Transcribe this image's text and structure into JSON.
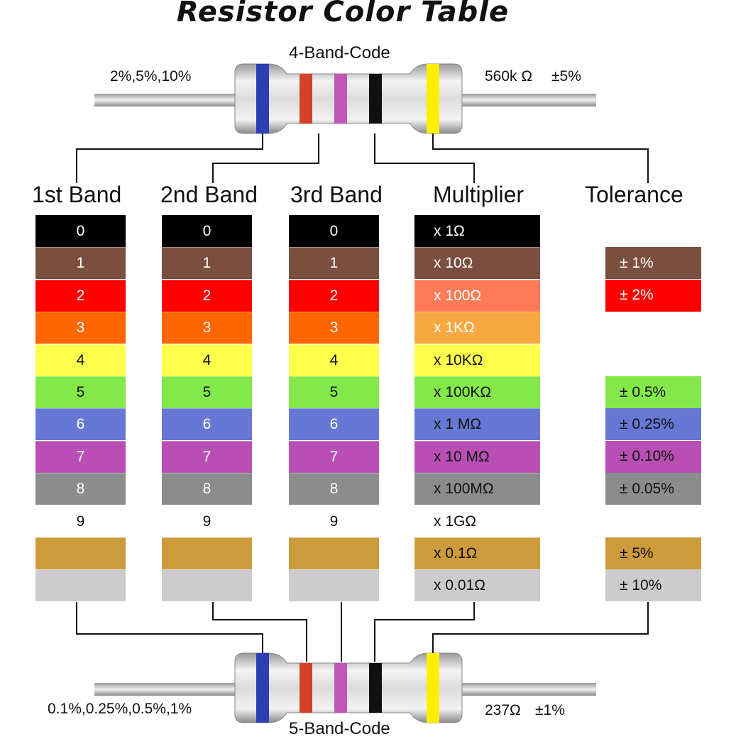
{
  "title": "Resistor Color Table",
  "four_band": {
    "label": "4-Band-Code",
    "tolerance_note": "2%,5%,10%",
    "example_value": "560k Ω",
    "example_tolerance": "±5%",
    "band_colors": [
      "#2e3fb5",
      "#d6412a",
      "#c057b9",
      "#111111",
      "#ffee00"
    ]
  },
  "five_band": {
    "label": "5-Band-Code",
    "tolerance_note": "0.1%,0.25%,0.5%,1%",
    "example_value": "237Ω",
    "example_tolerance": "±1%",
    "band_colors": [
      "#2e3fb5",
      "#d6412a",
      "#c057b9",
      "#111111",
      "#ffee00"
    ]
  },
  "headers": {
    "band1": "1st Band",
    "band2": "2nd Band",
    "band3": "3rd Band",
    "multiplier": "Multiplier",
    "tolerance": "Tolerance"
  },
  "colors": [
    {
      "name": "black",
      "hex": "#000000",
      "text": "#ffffff",
      "digit": "0",
      "multiplier": "x 1Ω",
      "multiplier_bg": "#000000",
      "multiplier_text": "#ffffff",
      "tolerance": ""
    },
    {
      "name": "brown",
      "hex": "#7b4f3f",
      "text": "#ffffff",
      "digit": "1",
      "multiplier": "x 10Ω",
      "multiplier_bg": "#7b4f3f",
      "multiplier_text": "#ffffff",
      "tolerance": "± 1%",
      "tolerance_text": "#ffffff"
    },
    {
      "name": "red",
      "hex": "#ff0000",
      "text": "#ffffff",
      "digit": "2",
      "multiplier": "x 100Ω",
      "multiplier_bg": "#ff7a57",
      "multiplier_text": "#ffffff",
      "tolerance": "± 2%",
      "tolerance_text": "#ffffff"
    },
    {
      "name": "orange",
      "hex": "#ff6600",
      "text": "#ffffff",
      "digit": "3",
      "multiplier": "x 1KΩ",
      "multiplier_bg": "#f8a840",
      "multiplier_text": "#ffffff",
      "tolerance": ""
    },
    {
      "name": "yellow",
      "hex": "#ffff4d",
      "text": "#111111",
      "digit": "4",
      "multiplier": "x 10KΩ",
      "multiplier_bg": "#ffff4d",
      "multiplier_text": "#111111",
      "tolerance": ""
    },
    {
      "name": "green",
      "hex": "#84e84a",
      "text": "#111111",
      "digit": "5",
      "multiplier": "x 100KΩ",
      "multiplier_bg": "#84e84a",
      "multiplier_text": "#111111",
      "tolerance": "± 0.5%",
      "tolerance_text": "#111111"
    },
    {
      "name": "blue",
      "hex": "#6677d4",
      "text": "#ffffff",
      "digit": "6",
      "multiplier": "x 1 MΩ",
      "multiplier_bg": "#6677d4",
      "multiplier_text": "#111111",
      "tolerance": "± 0.25%",
      "tolerance_text": "#111111"
    },
    {
      "name": "violet",
      "hex": "#b94fb5",
      "text": "#ffffff",
      "digit": "7",
      "multiplier": "x 10 MΩ",
      "multiplier_bg": "#b94fb5",
      "multiplier_text": "#111111",
      "tolerance": "± 0.10%",
      "tolerance_text": "#111111"
    },
    {
      "name": "gray",
      "hex": "#8c8c8c",
      "text": "#ffffff",
      "digit": "8",
      "multiplier": "x 100MΩ",
      "multiplier_bg": "#8c8c8c",
      "multiplier_text": "#111111",
      "tolerance": "± 0.05%",
      "tolerance_text": "#111111"
    },
    {
      "name": "white",
      "hex": "#ffffff",
      "text": "#111111",
      "digit": "9",
      "multiplier": "x 1GΩ",
      "multiplier_bg": "#ffffff",
      "multiplier_text": "#111111",
      "tolerance": ""
    },
    {
      "name": "gold",
      "hex": "#cc9b3c",
      "text": "#111111",
      "digit": "",
      "multiplier": "x 0.1Ω",
      "multiplier_bg": "#cc9b3c",
      "multiplier_text": "#111111",
      "tolerance": "± 5%",
      "tolerance_text": "#111111"
    },
    {
      "name": "silver",
      "hex": "#cccccc",
      "text": "#111111",
      "digit": "",
      "multiplier": "x 0.01Ω",
      "multiplier_bg": "#cccccc",
      "multiplier_text": "#111111",
      "tolerance": "± 10%",
      "tolerance_text": "#111111"
    }
  ]
}
